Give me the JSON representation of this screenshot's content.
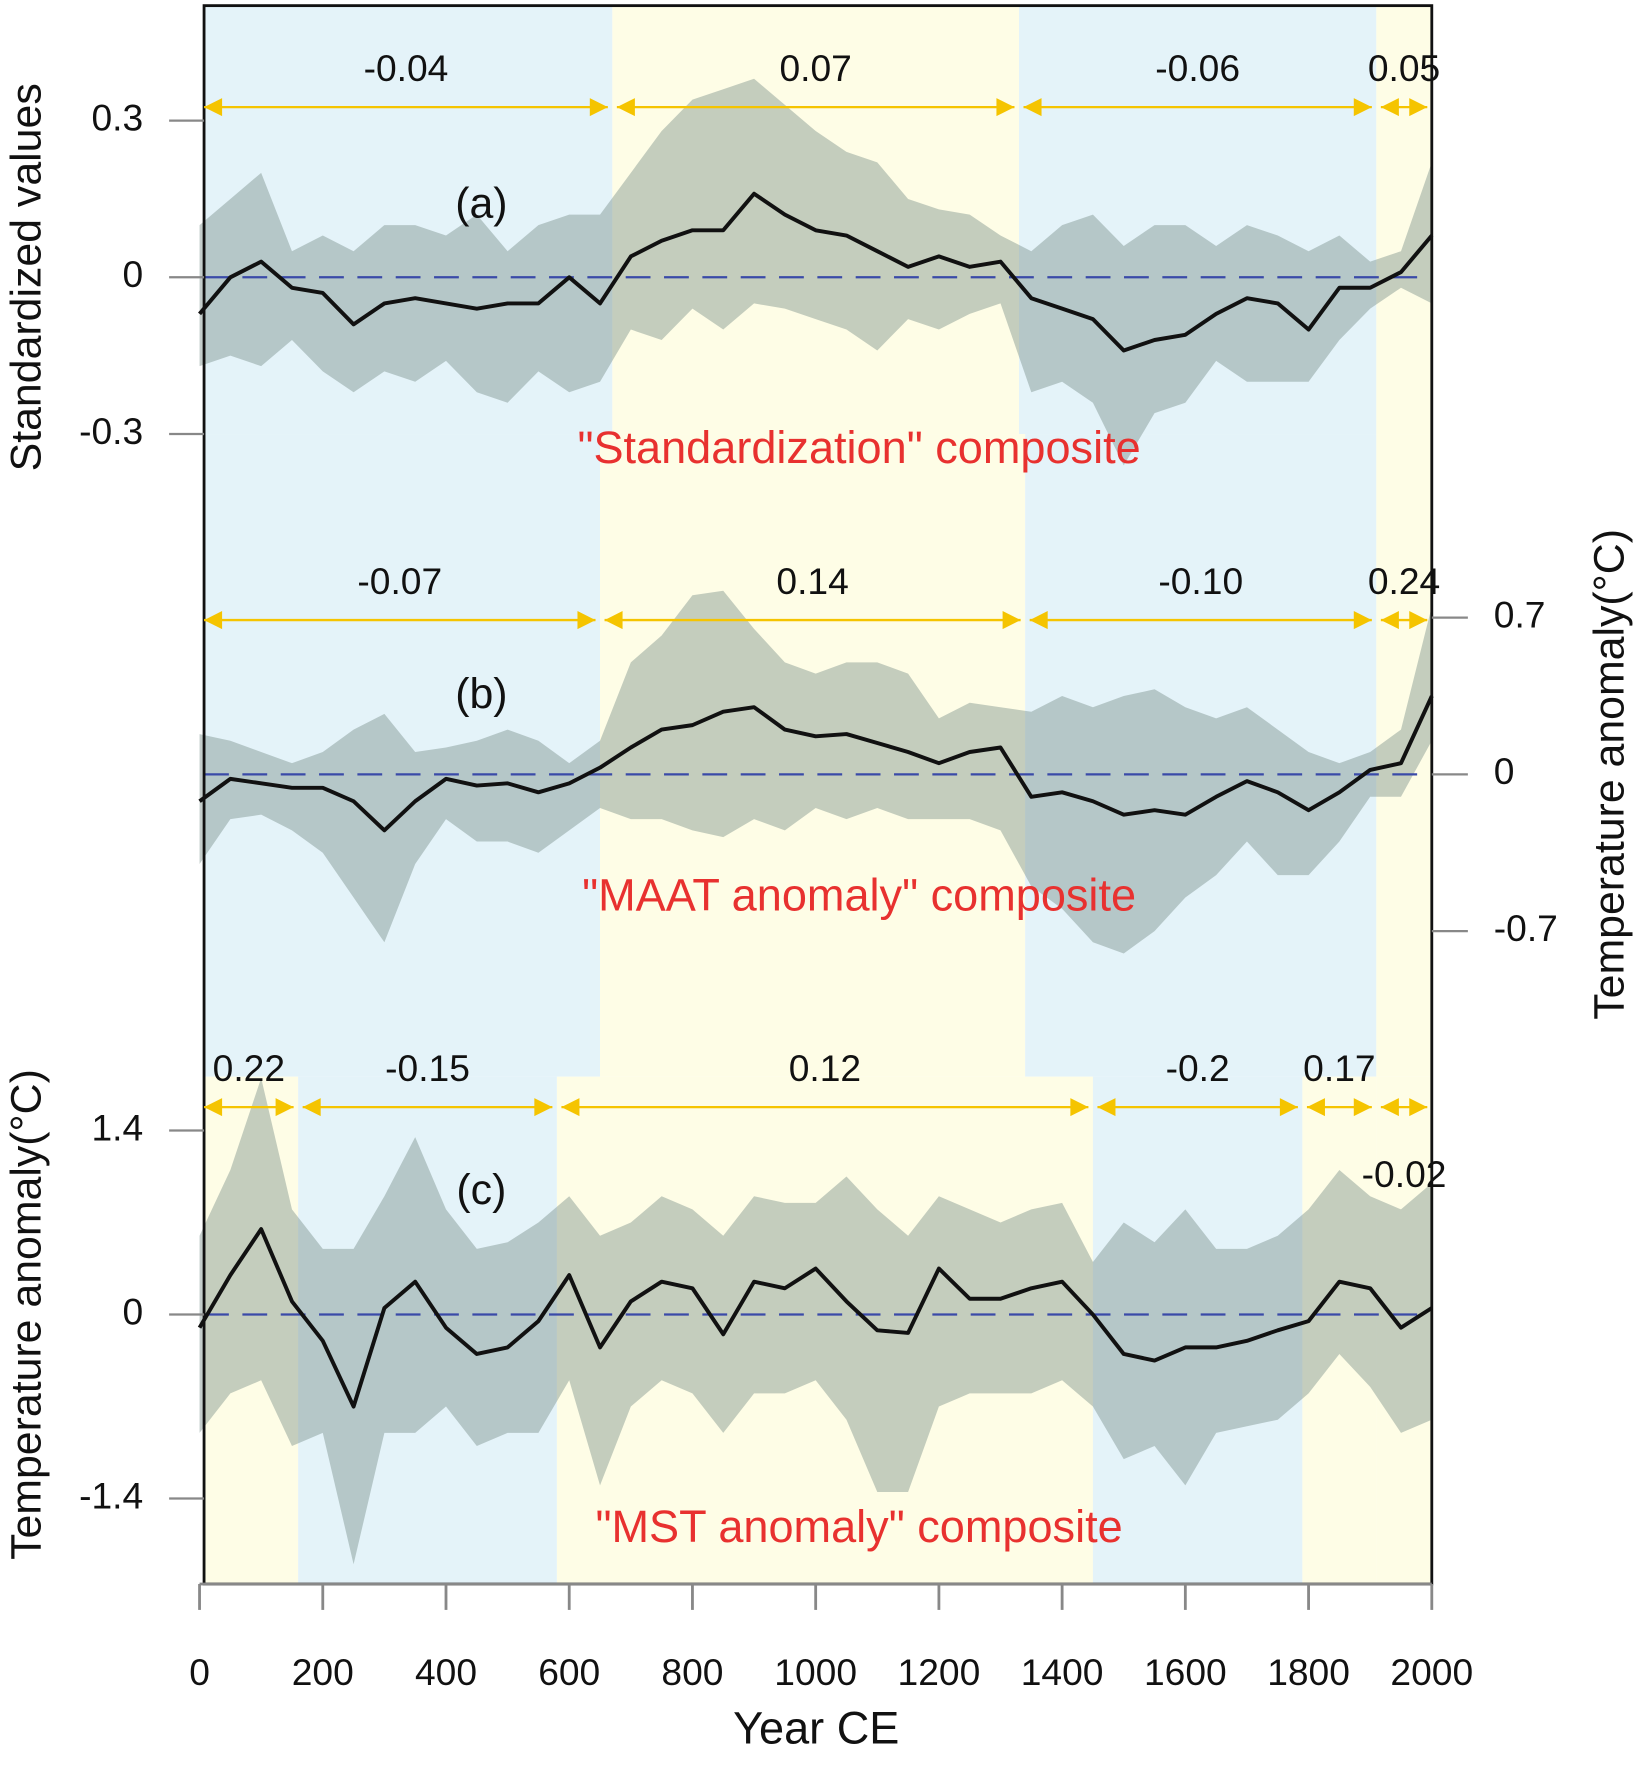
{
  "chart_data": [
    {
      "type": "line",
      "title": "(a)",
      "subtitle": "\"Standardization\" composite",
      "ylabel": "Standardized values",
      "y_axis_side": "left",
      "xlim": [
        0,
        2000
      ],
      "ylim": [
        -0.3,
        0.52
      ],
      "yticks": [
        0.3,
        0,
        -0.3
      ],
      "x": [
        0,
        50,
        100,
        150,
        200,
        250,
        300,
        350,
        400,
        450,
        500,
        550,
        600,
        650,
        700,
        750,
        800,
        850,
        900,
        950,
        1000,
        1050,
        1100,
        1150,
        1200,
        1250,
        1300,
        1350,
        1400,
        1450,
        1500,
        1550,
        1600,
        1650,
        1700,
        1750,
        1800,
        1850,
        1900,
        1950,
        2000
      ],
      "values": [
        -0.07,
        0.0,
        0.03,
        -0.02,
        -0.03,
        -0.09,
        -0.05,
        -0.04,
        -0.05,
        -0.06,
        -0.05,
        -0.05,
        0.0,
        -0.05,
        0.04,
        0.07,
        0.09,
        0.09,
        0.16,
        0.12,
        0.09,
        0.08,
        0.05,
        0.02,
        0.04,
        0.02,
        0.03,
        -0.04,
        -0.06,
        -0.08,
        -0.14,
        -0.12,
        -0.11,
        -0.07,
        -0.04,
        -0.05,
        -0.1,
        -0.02,
        -0.02,
        0.01,
        0.08
      ],
      "upper": [
        0.1,
        0.15,
        0.2,
        0.05,
        0.08,
        0.05,
        0.1,
        0.1,
        0.08,
        0.12,
        0.05,
        0.1,
        0.12,
        0.12,
        0.2,
        0.28,
        0.34,
        0.36,
        0.38,
        0.33,
        0.28,
        0.24,
        0.22,
        0.15,
        0.13,
        0.12,
        0.08,
        0.05,
        0.1,
        0.12,
        0.06,
        0.1,
        0.1,
        0.06,
        0.1,
        0.08,
        0.05,
        0.08,
        0.03,
        0.05,
        0.22
      ],
      "lower": [
        -0.17,
        -0.15,
        -0.17,
        -0.12,
        -0.18,
        -0.22,
        -0.18,
        -0.2,
        -0.16,
        -0.22,
        -0.24,
        -0.18,
        -0.22,
        -0.2,
        -0.1,
        -0.12,
        -0.06,
        -0.1,
        -0.05,
        -0.06,
        -0.08,
        -0.1,
        -0.14,
        -0.08,
        -0.1,
        -0.07,
        -0.05,
        -0.22,
        -0.2,
        -0.24,
        -0.36,
        -0.26,
        -0.24,
        -0.16,
        -0.2,
        -0.2,
        -0.2,
        -0.12,
        -0.06,
        -0.02,
        -0.05
      ],
      "line_color": "#111111",
      "band_color": "#6f8580",
      "zero_color": "#3a4aa8",
      "arrow_color": "#f5c400",
      "title_color": "#e8312f",
      "periods": [
        {
          "start": 0,
          "end": 670,
          "value": -0.04,
          "color": "#e4f3f9"
        },
        {
          "start": 670,
          "end": 1330,
          "value": 0.07,
          "color": "#fefde6"
        },
        {
          "start": 1330,
          "end": 1910,
          "value": -0.06,
          "color": "#e4f3f9"
        },
        {
          "start": 1910,
          "end": 2000,
          "value": 0.05,
          "color": "#fefde6"
        }
      ]
    },
    {
      "type": "line",
      "title": "(b)",
      "subtitle": "\"MAAT anomaly\" composite",
      "ylabel": "Temperature anomaly(°C)",
      "y_axis_side": "right",
      "xlim": [
        0,
        2000
      ],
      "ylim": [
        -1.35,
        1.52
      ],
      "yticks": [
        0.7,
        0,
        -0.7
      ],
      "x": [
        0,
        50,
        100,
        150,
        200,
        250,
        300,
        350,
        400,
        450,
        500,
        550,
        600,
        650,
        700,
        750,
        800,
        850,
        900,
        950,
        1000,
        1050,
        1100,
        1150,
        1200,
        1250,
        1300,
        1350,
        1400,
        1450,
        1500,
        1550,
        1600,
        1650,
        1700,
        1750,
        1800,
        1850,
        1900,
        1950,
        2000
      ],
      "values": [
        -0.12,
        -0.02,
        -0.04,
        -0.06,
        -0.06,
        -0.12,
        -0.25,
        -0.12,
        -0.02,
        -0.05,
        -0.04,
        -0.08,
        -0.04,
        0.03,
        0.12,
        0.2,
        0.22,
        0.28,
        0.3,
        0.2,
        0.17,
        0.18,
        0.14,
        0.1,
        0.05,
        0.1,
        0.12,
        -0.1,
        -0.08,
        -0.12,
        -0.18,
        -0.16,
        -0.18,
        -0.1,
        -0.03,
        -0.08,
        -0.16,
        -0.08,
        0.02,
        0.05,
        0.35
      ],
      "upper": [
        0.18,
        0.15,
        0.1,
        0.05,
        0.1,
        0.2,
        0.27,
        0.1,
        0.12,
        0.15,
        0.2,
        0.15,
        0.05,
        0.15,
        0.5,
        0.62,
        0.8,
        0.82,
        0.65,
        0.5,
        0.45,
        0.5,
        0.5,
        0.45,
        0.25,
        0.32,
        0.3,
        0.28,
        0.35,
        0.3,
        0.35,
        0.38,
        0.3,
        0.25,
        0.3,
        0.2,
        0.1,
        0.05,
        0.1,
        0.2,
        0.75
      ],
      "lower": [
        -0.4,
        -0.2,
        -0.18,
        -0.25,
        -0.35,
        -0.55,
        -0.75,
        -0.4,
        -0.2,
        -0.3,
        -0.3,
        -0.35,
        -0.25,
        -0.15,
        -0.2,
        -0.2,
        -0.25,
        -0.28,
        -0.2,
        -0.25,
        -0.15,
        -0.2,
        -0.15,
        -0.2,
        -0.2,
        -0.2,
        -0.25,
        -0.5,
        -0.6,
        -0.75,
        -0.8,
        -0.7,
        -0.55,
        -0.45,
        -0.3,
        -0.45,
        -0.45,
        -0.3,
        -0.1,
        -0.1,
        0.15
      ],
      "line_color": "#111111",
      "band_color": "#6f8580",
      "zero_color": "#3a4aa8",
      "arrow_color": "#f5c400",
      "title_color": "#e8312f",
      "periods": [
        {
          "start": 0,
          "end": 650,
          "value": -0.07,
          "color": "#e4f3f9"
        },
        {
          "start": 650,
          "end": 1340,
          "value": 0.14,
          "color": "#fefde6"
        },
        {
          "start": 1340,
          "end": 1910,
          "value": -0.1,
          "label": "-0.10",
          "color": "#e4f3f9"
        },
        {
          "start": 1910,
          "end": 2000,
          "value": 0.24,
          "color": "#fefde6"
        }
      ]
    },
    {
      "type": "line",
      "title": "(c)",
      "subtitle": "\"MST anomaly\" composite",
      "ylabel": "Temperature anomaly(°C)",
      "y_axis_side": "left",
      "xlabel": "Year CE",
      "xlim": [
        0,
        2000
      ],
      "xticks": [
        0,
        200,
        400,
        600,
        800,
        1000,
        1200,
        1400,
        1600,
        1800,
        2000
      ],
      "ylim": [
        -2.05,
        1.81
      ],
      "yticks": [
        1.4,
        0,
        -1.4
      ],
      "x": [
        0,
        50,
        100,
        150,
        200,
        250,
        300,
        350,
        400,
        450,
        500,
        550,
        600,
        650,
        700,
        750,
        800,
        850,
        900,
        950,
        1000,
        1050,
        1100,
        1150,
        1200,
        1250,
        1300,
        1350,
        1400,
        1450,
        1500,
        1550,
        1600,
        1650,
        1700,
        1750,
        1800,
        1850,
        1900,
        1950,
        2000
      ],
      "values": [
        -0.1,
        0.3,
        0.65,
        0.1,
        -0.2,
        -0.7,
        0.05,
        0.25,
        -0.1,
        -0.3,
        -0.25,
        -0.05,
        0.3,
        -0.25,
        0.1,
        0.25,
        0.2,
        -0.15,
        0.25,
        0.2,
        0.35,
        0.1,
        -0.12,
        -0.14,
        0.35,
        0.12,
        0.12,
        0.2,
        0.25,
        0,
        -0.3,
        -0.35,
        -0.25,
        -0.25,
        -0.2,
        -0.12,
        -0.05,
        0.25,
        0.2,
        -0.1,
        0.05
      ],
      "upper": [
        0.6,
        1.1,
        1.8,
        0.8,
        0.5,
        0.5,
        0.9,
        1.35,
        0.8,
        0.5,
        0.55,
        0.7,
        0.9,
        0.6,
        0.7,
        0.9,
        0.8,
        0.6,
        0.9,
        0.85,
        0.85,
        1.05,
        0.8,
        0.6,
        0.9,
        0.8,
        0.7,
        0.8,
        0.85,
        0.4,
        0.7,
        0.55,
        0.8,
        0.5,
        0.5,
        0.6,
        0.8,
        1.1,
        0.9,
        0.8,
        1.0
      ],
      "lower": [
        -0.9,
        -0.6,
        -0.5,
        -1.0,
        -0.9,
        -1.9,
        -0.9,
        -0.9,
        -0.7,
        -1.0,
        -0.9,
        -0.9,
        -0.5,
        -1.3,
        -0.7,
        -0.5,
        -0.6,
        -0.9,
        -0.6,
        -0.6,
        -0.5,
        -0.8,
        -1.35,
        -1.35,
        -0.7,
        -0.6,
        -0.6,
        -0.6,
        -0.5,
        -0.7,
        -1.1,
        -1.0,
        -1.3,
        -0.9,
        -0.85,
        -0.8,
        -0.6,
        -0.3,
        -0.55,
        -0.9,
        -0.8
      ],
      "line_color": "#111111",
      "band_color": "#6f8580",
      "zero_color": "#3a4aa8",
      "arrow_color": "#f5c400",
      "title_color": "#e8312f",
      "periods": [
        {
          "start": 0,
          "end": 160,
          "value": 0.22,
          "color": "#fefde6"
        },
        {
          "start": 160,
          "end": 580,
          "value": -0.15,
          "color": "#e4f3f9"
        },
        {
          "start": 580,
          "end": 1450,
          "value": 0.12,
          "color": "#fefde6"
        },
        {
          "start": 1450,
          "end": 1790,
          "value": -0.2,
          "color": "#e4f3f9"
        },
        {
          "start": 1790,
          "end": 1910,
          "value": 0.17,
          "color": "#fefde6"
        },
        {
          "start": 1910,
          "end": 2000,
          "value": -0.02,
          "color": "#fefde6"
        }
      ]
    }
  ]
}
